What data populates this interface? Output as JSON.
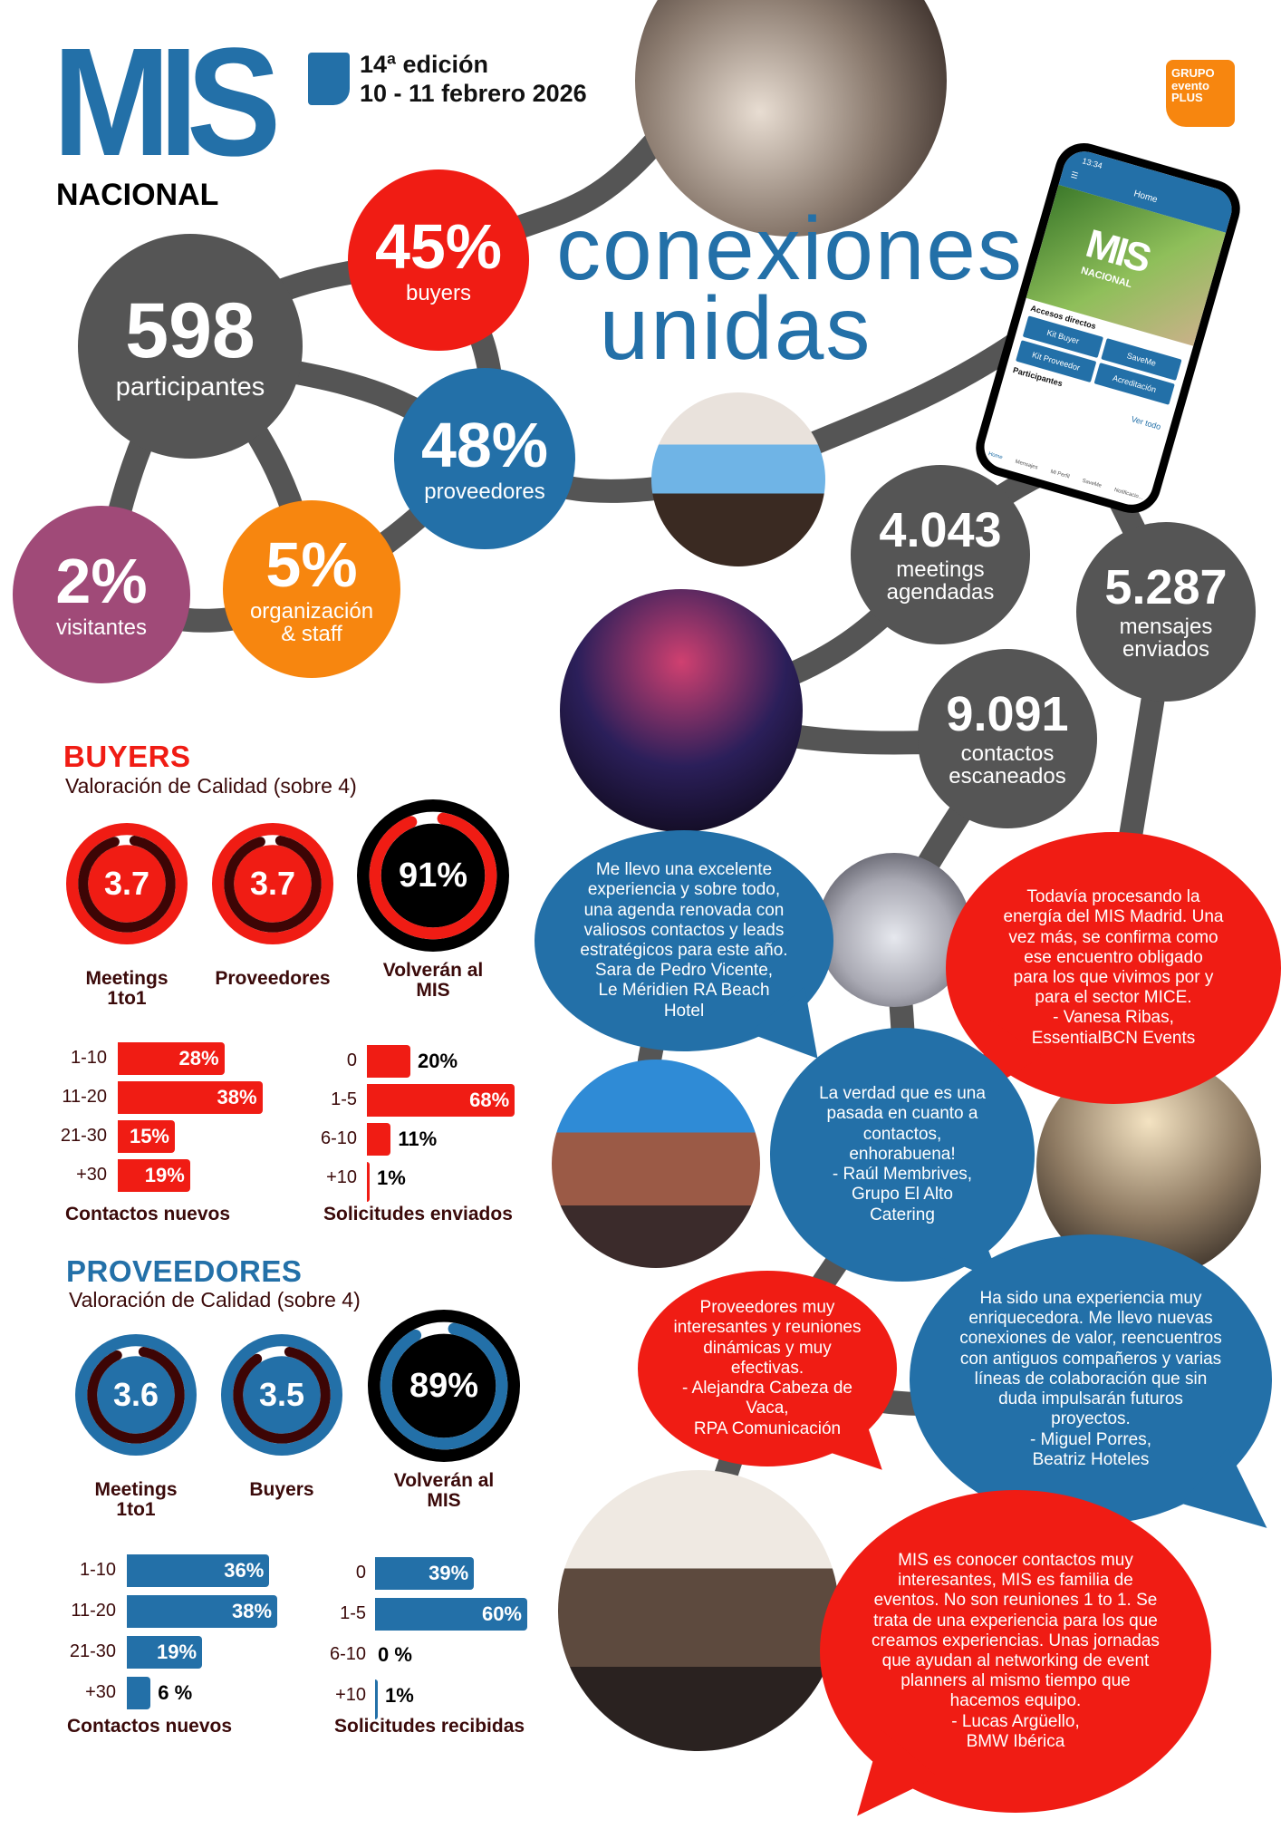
{
  "header": {
    "logo_main": "MIS",
    "logo_sub": "NACIONAL",
    "edition": "14ª edición",
    "dates": "10 - 11 febrero 2026",
    "partner_logo": "GRUPO evento PLUS"
  },
  "headline": {
    "line1": "conexiones",
    "line2": "unidas"
  },
  "stats": {
    "participants": {
      "value": "598",
      "label": "participantes"
    },
    "buyers": {
      "value": "45%",
      "label": "buyers"
    },
    "providers": {
      "value": "48%",
      "label": "proveedores"
    },
    "visitors": {
      "value": "2%",
      "label": "visitantes"
    },
    "staff": {
      "value": "5%",
      "label": "organización\n& staff"
    },
    "meetings": {
      "value": "4.043",
      "label": "meetings\nagendadas"
    },
    "messages": {
      "value": "5.287",
      "label": "mensajes\nenviados"
    },
    "contacts": {
      "value": "9.091",
      "label": "contactos\nescaneados"
    }
  },
  "phone": {
    "time": "13:34",
    "title": "Home",
    "hero_logo": "MIS",
    "hero_sub": "NACIONAL",
    "section_shortcuts": "Accesos directos",
    "shortcuts": [
      "Kit Buyer",
      "SaveMe",
      "Kit Proveedor",
      "Acreditación"
    ],
    "section_participants": "Participantes",
    "see_all": "Ver todo",
    "nav": [
      "Home",
      "Mensajes",
      "Mi Perfil",
      "SaveMe",
      "Notificacio..."
    ]
  },
  "buyers": {
    "title": "BUYERS",
    "subtitle": "Valoración de Calidad (sobre 4)",
    "gauges": [
      {
        "value": 3.7,
        "display": "3.7",
        "max": 4,
        "label": "Meetings\n1to1"
      },
      {
        "value": 3.7,
        "display": "3.7",
        "max": 4,
        "label": "Proveedores"
      },
      {
        "value": 91,
        "display": "91%",
        "max": 100,
        "label": "Volverán al\nMIS"
      }
    ],
    "contacts": {
      "caption": "Contactos nuevos",
      "categories": [
        "1-10",
        "11-20",
        "21-30",
        "+30"
      ],
      "values": [
        28,
        38,
        15,
        19
      ],
      "labels": [
        "28%",
        "38%",
        "15%",
        "19%"
      ]
    },
    "requests": {
      "caption": "Solicitudes enviados",
      "categories": [
        "0",
        "1-5",
        "6-10",
        "+10"
      ],
      "values": [
        20,
        68,
        11,
        1
      ],
      "labels": [
        "20%",
        "68%",
        "11%",
        "1%"
      ]
    }
  },
  "providers": {
    "title": "PROVEEDORES",
    "subtitle": "Valoración de Calidad (sobre 4)",
    "gauges": [
      {
        "value": 3.6,
        "display": "3.6",
        "max": 4,
        "label": "Meetings\n1to1"
      },
      {
        "value": 3.5,
        "display": "3.5",
        "max": 4,
        "label": "Buyers"
      },
      {
        "value": 89,
        "display": "89%",
        "max": 100,
        "label": "Volverán al\nMIS"
      }
    ],
    "contacts": {
      "caption": "Contactos nuevos",
      "categories": [
        "1-10",
        "11-20",
        "21-30",
        "+30"
      ],
      "values": [
        36,
        38,
        19,
        6
      ],
      "labels": [
        "36%",
        "38%",
        "19%",
        "6 %"
      ]
    },
    "requests": {
      "caption": "Solicitudes recibidas",
      "categories": [
        "0",
        "1-5",
        "6-10",
        "+10"
      ],
      "values": [
        39,
        60,
        0,
        1
      ],
      "labels": [
        "39%",
        "60%",
        "0 %",
        "1%"
      ]
    }
  },
  "quotes": [
    {
      "text": "Me llevo una excelente\nexperiencia y sobre todo,\nuna agenda renovada con\nvaliosos contactos y leads\nestratégicos para este año.\nSara de Pedro Vicente,\nLe Méridien RA Beach\nHotel"
    },
    {
      "text": "Todavía procesando la\nenergía del MIS Madrid. Una\nvez más, se confirma como\nese encuentro obligado\npara los que vivimos por y\npara el sector MICE.\n- Vanesa Ribas,\nEssentialBCN Events"
    },
    {
      "text": "La verdad que es una\npasada en cuanto a\ncontactos,\nenhorabuena!\n- Raúl Membrives,\nGrupo El Alto\nCatering"
    },
    {
      "text": "Proveedores muy\ninteresantes y reuniones\ndinámicas y muy\nefectivas.\n- Alejandra Cabeza de\nVaca,\nRPA Comunicación"
    },
    {
      "text": "Ha sido una experiencia muy\nenriquecedora. Me llevo nuevas\nconexiones de valor, reencuentros\ncon antiguos compañeros y varias\nlíneas de colaboración que sin\nduda impulsarán futuros\nproyectos.\n- Miguel Porres,\nBeatriz Hoteles"
    },
    {
      "text": "MIS es conocer contactos muy\ninteresantes, MIS es familia de\neventos. No son reuniones 1 to 1. Se\ntrata de una experiencia para los que\ncreamos experiencias. Unas jornadas\nque ayudan al networking de event\nplanners al mismo tiempo que\nhacemos equipo.\n- Lucas Argüello,\nBMW Ibérica"
    }
  ],
  "colors": {
    "blue": "#2370a8",
    "red": "#f01c14",
    "gray": "#555555",
    "orange": "#f7860f",
    "purple": "#a04a78",
    "maroon": "#3d0505",
    "dark_text": "#3b0a0a"
  }
}
